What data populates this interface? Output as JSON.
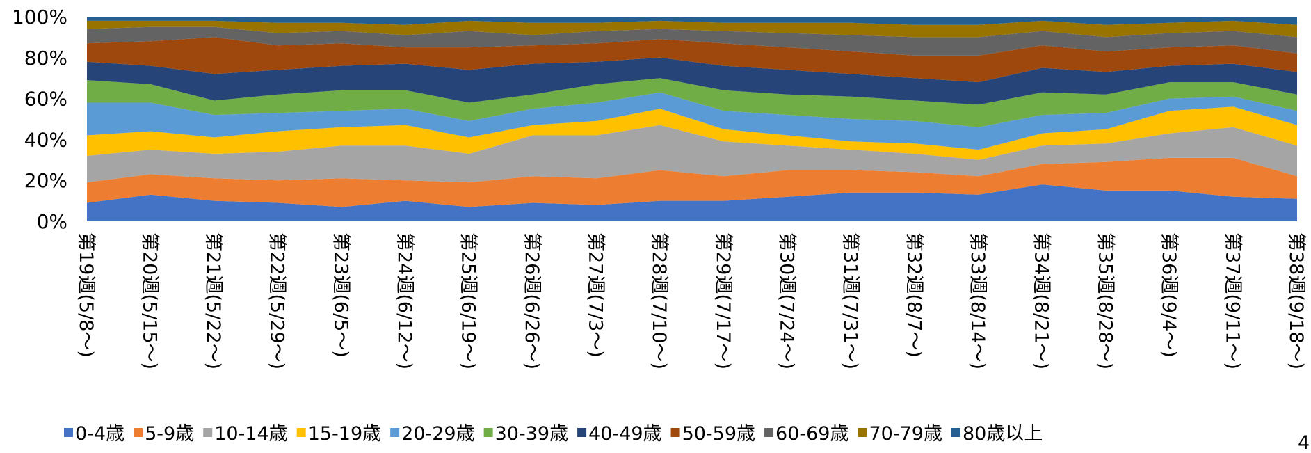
{
  "chart_data": {
    "type": "area",
    "stacked": "percent",
    "title": "",
    "xlabel": "",
    "ylabel": "",
    "ylim": [
      0,
      100
    ],
    "y_ticks": [
      "0%",
      "20%",
      "40%",
      "60%",
      "80%",
      "100%"
    ],
    "grid": false,
    "legend": "bottom",
    "categories": [
      "第19週(5/8～)",
      "第20週(5/15～)",
      "第21週(5/22～)",
      "第22週(5/29～)",
      "第23週(6/5～)",
      "第24週(6/12～)",
      "第25週(6/19～)",
      "第26週(6/26～)",
      "第27週(7/3～)",
      "第28週(7/10～)",
      "第29週(7/17～)",
      "第30週(7/24～)",
      "第31週(7/31～)",
      "第32週(8/7～)",
      "第33週(8/14～)",
      "第34週(8/21～)",
      "第35週(8/28～)",
      "第36週(9/4～)",
      "第37週(9/11～)",
      "第38週(9/18～)"
    ],
    "series": [
      {
        "name": "0-4歳",
        "color": "#4472C4",
        "values": [
          9,
          13,
          10,
          9,
          7,
          10,
          7,
          9,
          8,
          10,
          10,
          12,
          14,
          14,
          13,
          18,
          15,
          15,
          12,
          11
        ]
      },
      {
        "name": "5-9歳",
        "color": "#ED7D31",
        "values": [
          10,
          10,
          11,
          11,
          14,
          10,
          12,
          13,
          13,
          15,
          12,
          13,
          11,
          10,
          9,
          10,
          14,
          16,
          19,
          11
        ]
      },
      {
        "name": "10-14歳",
        "color": "#A5A5A5",
        "values": [
          13,
          12,
          12,
          14,
          16,
          17,
          14,
          20,
          21,
          22,
          17,
          12,
          10,
          9,
          8,
          9,
          9,
          12,
          15,
          15
        ]
      },
      {
        "name": "15-19歳",
        "color": "#FFC000",
        "values": [
          10,
          9,
          8,
          10,
          9,
          10,
          8,
          5,
          7,
          8,
          6,
          5,
          4,
          5,
          5,
          6,
          7,
          11,
          10,
          10
        ]
      },
      {
        "name": "20-29歳",
        "color": "#5B9BD5",
        "values": [
          16,
          14,
          11,
          9,
          8,
          8,
          8,
          8,
          9,
          8,
          9,
          10,
          11,
          11,
          11,
          9,
          8,
          6,
          5,
          7
        ]
      },
      {
        "name": "30-39歳",
        "color": "#70AD47",
        "values": [
          11,
          9,
          7,
          9,
          10,
          9,
          9,
          7,
          9,
          7,
          10,
          10,
          11,
          10,
          11,
          11,
          9,
          8,
          7,
          8
        ]
      },
      {
        "name": "40-49歳",
        "color": "#264478",
        "values": [
          9,
          9,
          13,
          12,
          12,
          13,
          16,
          15,
          11,
          10,
          12,
          12,
          11,
          11,
          11,
          12,
          11,
          8,
          9,
          11
        ]
      },
      {
        "name": "50-59歳",
        "color": "#9E480E",
        "values": [
          9,
          12,
          18,
          12,
          11,
          8,
          11,
          9,
          9,
          9,
          11,
          11,
          11,
          11,
          13,
          11,
          10,
          9,
          9,
          9
        ]
      },
      {
        "name": "60-69歳",
        "color": "#636363",
        "values": [
          7,
          7,
          5,
          6,
          6,
          6,
          8,
          5,
          6,
          5,
          6,
          7,
          8,
          9,
          9,
          7,
          7,
          7,
          7,
          8
        ]
      },
      {
        "name": "70-79歳",
        "color": "#997300",
        "values": [
          4,
          3,
          3,
          5,
          4,
          5,
          5,
          6,
          4,
          4,
          4,
          5,
          6,
          6,
          6,
          5,
          6,
          5,
          5,
          6
        ]
      },
      {
        "name": "80歳以上",
        "color": "#255E91",
        "values": [
          2,
          2,
          2,
          3,
          3,
          4,
          2,
          3,
          3,
          2,
          3,
          3,
          3,
          4,
          4,
          2,
          4,
          3,
          2,
          4
        ]
      }
    ]
  },
  "page_number": "4"
}
